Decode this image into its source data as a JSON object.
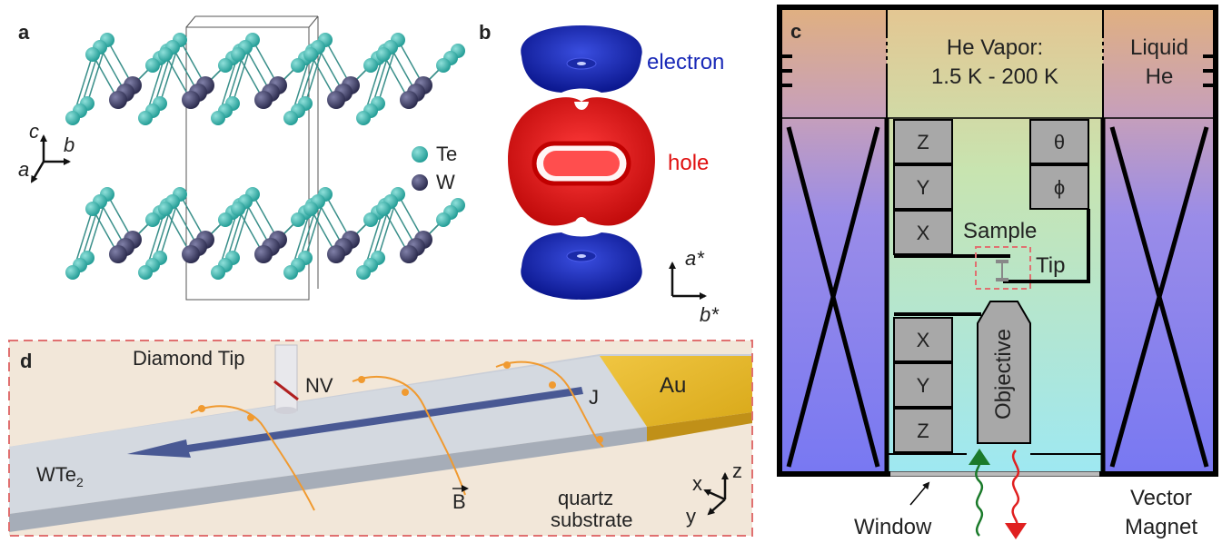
{
  "panels": {
    "a": {
      "label": "a",
      "axes": {
        "c": "c",
        "b": "b",
        "a": "a"
      },
      "legend": [
        {
          "symbol": "Te",
          "color": "#3fb5ad"
        },
        {
          "symbol": "W",
          "color": "#3a3a5c"
        }
      ]
    },
    "b": {
      "label": "b",
      "electron": "electron",
      "hole": "hole",
      "axis_a": "a*",
      "axis_b": "b*",
      "electron_color": "#1a2ab8",
      "hole_color": "#e01010"
    },
    "c": {
      "label": "c",
      "vapor_line1": "He Vapor:",
      "vapor_line2": "1.5 K - 200 K",
      "liquid_line1": "Liquid",
      "liquid_line2": "He",
      "stack_upper": [
        "Z",
        "Y",
        "X"
      ],
      "rot_stack": [
        "θ",
        "ϕ"
      ],
      "sample": "Sample",
      "tip": "Tip",
      "stack_lower": [
        "X",
        "Y",
        "Z"
      ],
      "objective": "Objective",
      "window": "Window",
      "vector1": "Vector",
      "vector2": "Magnet",
      "colors": {
        "magnet": "#7a7af0",
        "vapor": "#9fe9f5",
        "excite": "#1a7a2a",
        "emit": "#e02020"
      }
    },
    "d": {
      "label": "d",
      "diamond_tip": "Diamond Tip",
      "nv": "NV",
      "j": "J",
      "au": "Au",
      "wte": "WTe",
      "wte_sub": "2",
      "b_field": "B",
      "quartz1": "quartz",
      "quartz2": "substrate",
      "ax_x": "x",
      "ax_y": "y",
      "ax_z": "z"
    }
  }
}
